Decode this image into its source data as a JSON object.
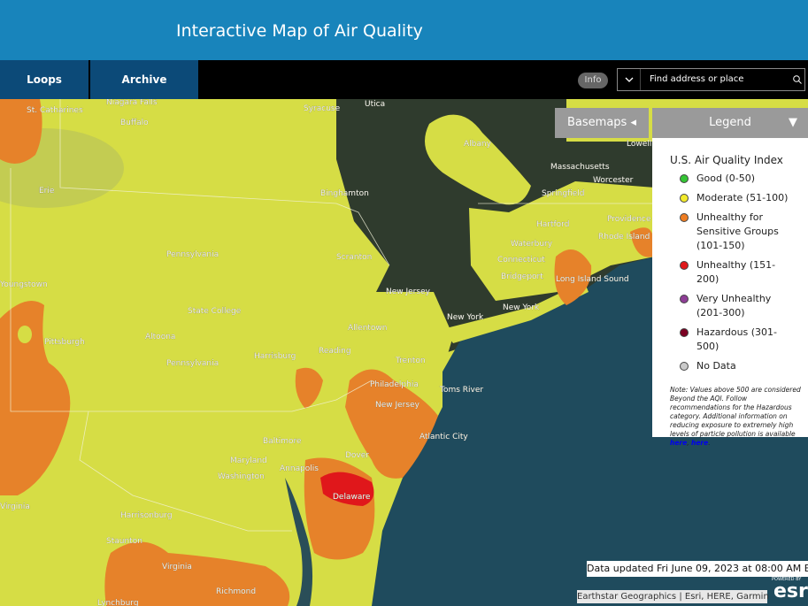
{
  "header": {
    "title": "Interactive Map of Air Quality"
  },
  "nav": {
    "tabs": [
      "Loops",
      "Archive"
    ],
    "info": "Info",
    "search_placeholder": "Find address or place"
  },
  "map_controls": {
    "basemaps": "Basemaps",
    "legend": "Legend"
  },
  "legend": {
    "title": "U.S. Air Quality Index",
    "items": [
      {
        "label": "Good (0-50)",
        "color": "#35c435"
      },
      {
        "label": "Moderate (51-100)",
        "color": "#f2ea2c"
      },
      {
        "label": "Unhealthy for Sensitive Groups (101-150)",
        "color": "#ee7d22"
      },
      {
        "label": "Unhealthy (151-200)",
        "color": "#e0191b"
      },
      {
        "label": "Very Unhealthy (201-300)",
        "color": "#8e3e96"
      },
      {
        "label": "Hazardous (301-500)",
        "color": "#7b0022"
      },
      {
        "label": "No Data",
        "color": "#c9c9c9"
      }
    ],
    "note": {
      "text": "Note: Values above 500 are considered Beyond the AQI. Follow recommendations for the Hazardous category. Additional information on reducing exposure to extremely high levels of particle pollution is available ",
      "link_1": "here",
      "separator": ", ",
      "link_2": "here",
      "end": "."
    }
  },
  "status": {
    "updated": "Data updated Fri June 09, 2023 at 08:00 AM EDT",
    "attribution": "Earthstar Geographics | Esri, HERE, Garmin",
    "powered_by": "POWERED BY",
    "logo": "esri"
  },
  "places": [
    "St. Catharines",
    "Niagara Falls",
    "Buffalo",
    "Syracuse",
    "Utica",
    "Albany",
    "Lowell",
    "Massachusetts",
    "Worcester",
    "Springfield",
    "Erie",
    "Binghamton",
    "Hartford",
    "Providence",
    "Rhode Island",
    "Waterbury",
    "Connecticut",
    "Pennsylvania",
    "Scranton",
    "Bridgeport",
    "Long Island Sound",
    "New Jersey",
    "Youngstown",
    "State College",
    "New York",
    "New York",
    "Allentown",
    "Pittsburgh",
    "Altoona",
    "Harrisburg",
    "Reading",
    "Pennsylvania",
    "Trenton",
    "Philadelphia",
    "Toms River",
    "New Jersey",
    "Atlantic City",
    "Baltimore",
    "Maryland",
    "Annapolis",
    "Dover",
    "Washington",
    "Delaware",
    "Virginia",
    "Harrisonburg",
    "Staunton",
    "Virginia",
    "Richmond",
    "Lynchburg"
  ]
}
